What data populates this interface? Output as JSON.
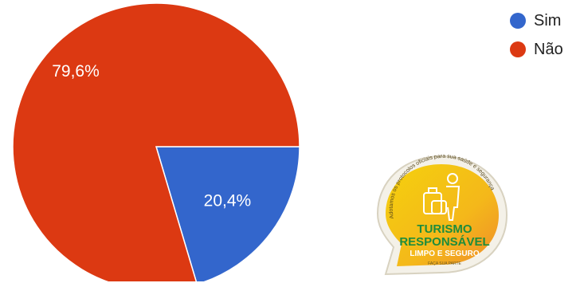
{
  "chart_data": {
    "type": "pie",
    "slices": [
      {
        "label": "Sim",
        "value": 20.4,
        "display": "20,4%",
        "color": "#3366cc"
      },
      {
        "label": "Não",
        "value": 79.6,
        "display": "79,6%",
        "color": "#dc3912"
      }
    ],
    "legend_position": "top-right"
  },
  "badge": {
    "line1": "TURISMO",
    "line2": "RESPONSÁVEL",
    "line3": "LIMPO E SEGURO",
    "arc_text": "Adotamos os protocolos oficiais para sua saúde e segurança",
    "footer": "FAÇA SUA PARTE",
    "colors": {
      "yellow": "#f2c21b",
      "orange": "#f28c28",
      "green": "#1e8c3c"
    }
  }
}
